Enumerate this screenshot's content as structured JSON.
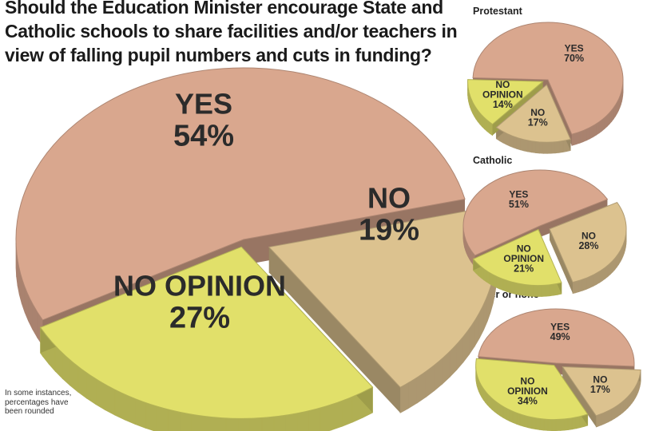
{
  "title": "Should the Education Minister encourage State and Catholic schools to share facilities and/or teachers in view of falling pupil numbers and cuts in funding?",
  "note": "In some instances, percentages have been rounded",
  "colors": {
    "yes": "#d9a78e",
    "no": "#dcc28f",
    "no_opinion": "#e1e06a"
  },
  "chart_data": [
    {
      "type": "pie",
      "title": "",
      "slices": [
        {
          "label": "YES",
          "value": 54,
          "text": "54%"
        },
        {
          "label": "NO",
          "value": 19,
          "text": "19%"
        },
        {
          "label": "NO OPINION",
          "value": 27,
          "text": "27%"
        }
      ]
    },
    {
      "type": "pie",
      "title": "Protestant",
      "slices": [
        {
          "label": "YES",
          "value": 70,
          "text": "70%"
        },
        {
          "label": "NO",
          "value": 17,
          "text": "17%"
        },
        {
          "label": "NO OPINION",
          "value": 14,
          "text": "14%"
        }
      ]
    },
    {
      "type": "pie",
      "title": "Catholic",
      "slices": [
        {
          "label": "YES",
          "value": 51,
          "text": "51%"
        },
        {
          "label": "NO",
          "value": 28,
          "text": "28%"
        },
        {
          "label": "NO OPINION",
          "value": 21,
          "text": "21%"
        }
      ]
    },
    {
      "type": "pie",
      "title": "Other or none",
      "slices": [
        {
          "label": "YES",
          "value": 49,
          "text": "49%"
        },
        {
          "label": "NO",
          "value": 17,
          "text": "17%"
        },
        {
          "label": "NO OPINION",
          "value": 34,
          "text": "34%"
        }
      ]
    }
  ]
}
